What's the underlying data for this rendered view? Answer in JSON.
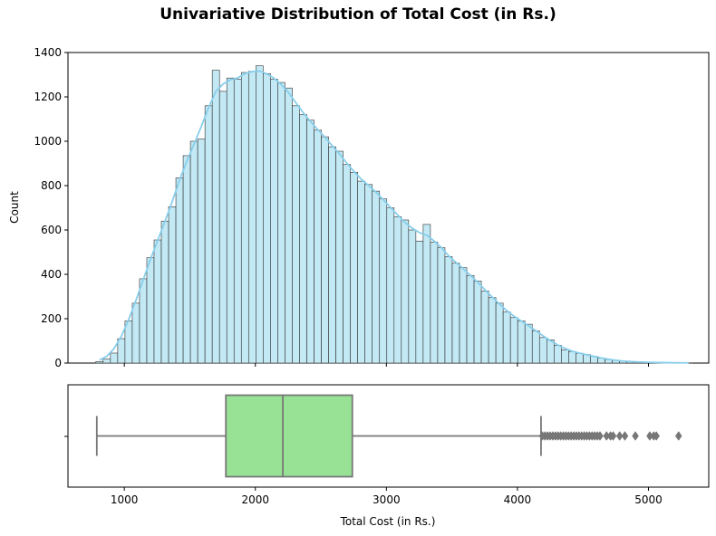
{
  "chart_data": [
    {
      "type": "histogram",
      "title": "Univariative Distribution of Total Cost (in Rs.)",
      "xlabel": "",
      "ylabel": "Count",
      "xlim": [
        570,
        5460
      ],
      "ylim": [
        0,
        1400
      ],
      "x_ticks": [
        1000,
        2000,
        3000,
        4000,
        5000
      ],
      "y_ticks": [
        0,
        200,
        400,
        600,
        800,
        1000,
        1200,
        1400
      ],
      "bin_start": 783,
      "bin_width": 55.5,
      "counts": [
        7,
        18,
        45,
        110,
        190,
        270,
        380,
        475,
        555,
        640,
        705,
        835,
        935,
        1000,
        1010,
        1160,
        1320,
        1225,
        1285,
        1280,
        1310,
        1315,
        1340,
        1305,
        1280,
        1265,
        1240,
        1160,
        1120,
        1095,
        1050,
        1020,
        975,
        955,
        895,
        860,
        820,
        805,
        775,
        740,
        700,
        660,
        645,
        600,
        550,
        625,
        545,
        520,
        480,
        450,
        430,
        395,
        370,
        325,
        295,
        270,
        230,
        205,
        190,
        175,
        145,
        115,
        105,
        80,
        60,
        52,
        44,
        38,
        30,
        22,
        16,
        12,
        9,
        6,
        5,
        4,
        3,
        2,
        2,
        1,
        1,
        1
      ],
      "kde": {
        "color": "#87ceeb"
      },
      "bar_fill": "#c3e9f5",
      "bar_edge": "#2f2f2f",
      "grid": false
    },
    {
      "type": "boxplot",
      "xlabel": "Total Cost (in Rs.)",
      "whisker_low": 790,
      "q1": 1775,
      "median": 2210,
      "q3": 2740,
      "whisker_high": 4180,
      "outliers": [
        4190,
        4210,
        4230,
        4250,
        4270,
        4290,
        4310,
        4330,
        4350,
        4370,
        4390,
        4410,
        4430,
        4450,
        4470,
        4490,
        4510,
        4530,
        4550,
        4570,
        4590,
        4610,
        4630,
        4680,
        4710,
        4730,
        4780,
        4820,
        4900,
        5010,
        5040,
        5060,
        5230
      ],
      "box_fill": "#98e296",
      "line_color": "#777777"
    }
  ]
}
